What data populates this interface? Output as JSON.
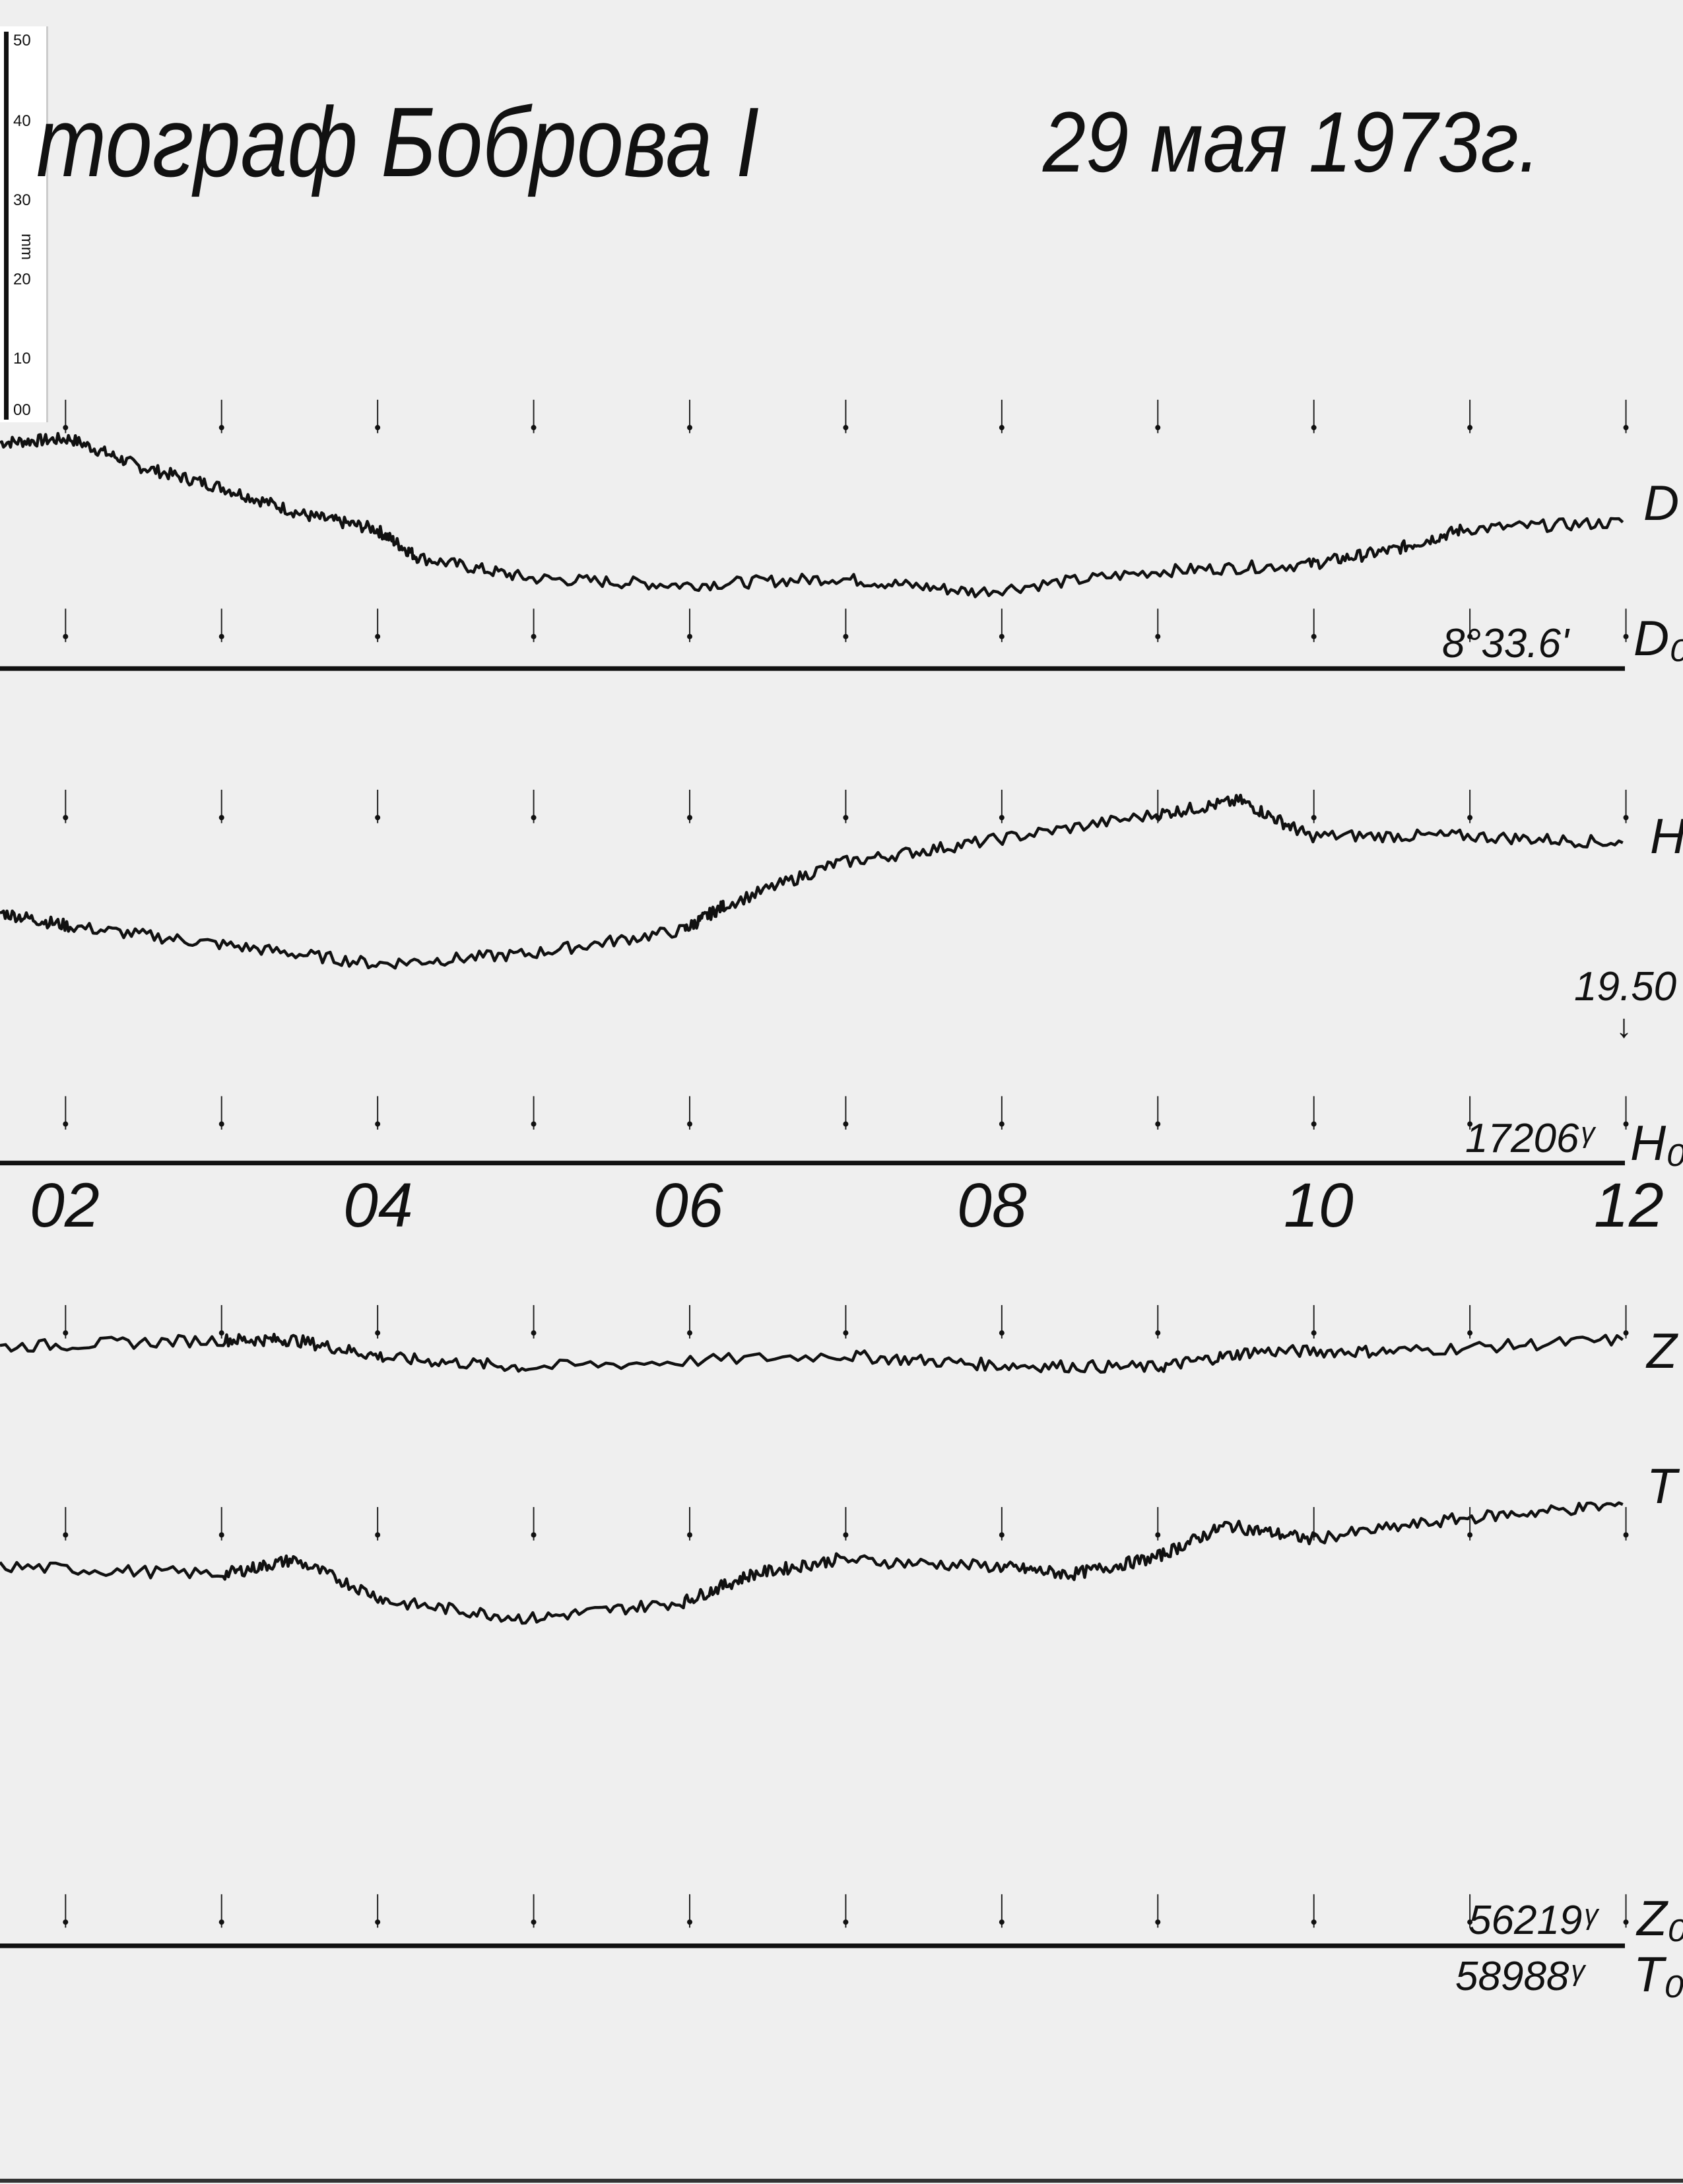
{
  "title": "тограф Боброва I",
  "date": "29 мая 1973г.",
  "ruler": {
    "unit": "mm",
    "ticks": [
      "50",
      "40",
      "30",
      "20",
      "10",
      "00"
    ]
  },
  "colors": {
    "paper": "#efefef",
    "ink": "#111111"
  },
  "chart_data": {
    "type": "line",
    "xlabel": "",
    "ylabel": "",
    "x_tick_labels": [
      "02",
      "04",
      "06",
      "08",
      "10",
      "12"
    ],
    "xlim": [
      1.58,
      12
    ],
    "grid": false,
    "series": [
      {
        "name": "D",
        "baseline_label": "D₀",
        "baseline_value": "8°33.6'",
        "x": [
          1.58,
          2.03,
          2.47,
          3.01,
          3.54,
          3.99,
          4.26,
          4.97,
          5.96,
          6.94,
          7.83,
          8.99,
          9.97,
          10.51,
          10.96,
          11.98
        ],
        "y": [
          29.5,
          30.0,
          26.4,
          23.6,
          20.0,
          18.2,
          14.5,
          11.8,
          10.9,
          11.8,
          10.0,
          12.7,
          13.6,
          15.5,
          18.2,
          19.1
        ]
      },
      {
        "name": "H",
        "baseline_label": "H₀",
        "baseline_value": "17206ᵞ",
        "note": "19.50",
        "x": [
          1.58,
          2.03,
          3.01,
          3.99,
          4.97,
          5.96,
          6.22,
          6.94,
          7.83,
          8.99,
          9.53,
          9.97,
          10.96,
          11.98
        ],
        "y": [
          32.7,
          30.9,
          28.5,
          26.0,
          27.3,
          30.4,
          33.6,
          39.1,
          41.8,
          45.5,
          47.3,
          42.7,
          42.7,
          41.8
        ]
      },
      {
        "name": "Z",
        "baseline_label": "Z₀",
        "baseline_value": "56219ᵞ",
        "x": [
          1.58,
          3.01,
          3.46,
          4.08,
          4.97,
          6.94,
          7.97,
          8.99,
          9.62,
          10.51,
          11.98
        ],
        "y": [
          78.2,
          79.1,
          79.1,
          76.7,
          75.5,
          77.1,
          75.8,
          75.5,
          77.6,
          77.6,
          79.1
        ]
      },
      {
        "name": "T",
        "baseline_label": "T₀",
        "baseline_value": "58988ᵞ",
        "x": [
          1.58,
          3.01,
          3.46,
          4.08,
          4.97,
          5.96,
          6.4,
          6.94,
          7.97,
          8.45,
          8.99,
          9.44,
          9.97,
          10.96,
          11.98
        ],
        "y": [
          49.5,
          48.5,
          50.4,
          44.9,
          42.7,
          44.9,
          48.5,
          50.4,
          49.5,
          48.5,
          50.7,
          54.9,
          53.1,
          55.8,
          57.6
        ]
      }
    ]
  }
}
